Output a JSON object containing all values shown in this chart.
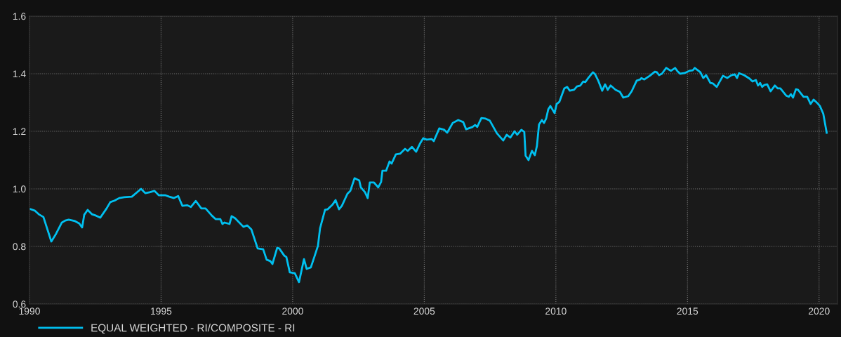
{
  "chart_data": {
    "type": "line",
    "x": [
      1990.03,
      1990.21,
      1990.35,
      1990.53,
      1990.83,
      1991.01,
      1991.23,
      1991.36,
      1991.49,
      1991.73,
      1991.89,
      1992.0,
      1992.08,
      1992.21,
      1992.37,
      1992.53,
      1992.69,
      1992.93,
      1993.07,
      1993.23,
      1993.41,
      1993.6,
      1993.89,
      1994.24,
      1994.4,
      1994.56,
      1994.75,
      1994.91,
      1995.15,
      1995.31,
      1995.49,
      1995.65,
      1995.81,
      1996.0,
      1996.13,
      1996.32,
      1996.53,
      1996.69,
      1996.93,
      1997.07,
      1997.25,
      1997.33,
      1997.41,
      1997.6,
      1997.68,
      1997.81,
      1998.13,
      1998.27,
      1998.43,
      1998.67,
      1998.88,
      1999.01,
      1999.15,
      1999.23,
      1999.41,
      1999.49,
      1999.68,
      1999.76,
      1999.89,
      2000.08,
      2000.24,
      2000.43,
      2000.53,
      2000.69,
      2000.85,
      2000.96,
      2001.04,
      2001.23,
      2001.33,
      2001.52,
      2001.63,
      2001.76,
      2001.87,
      2002.08,
      2002.19,
      2002.35,
      2002.53,
      2002.59,
      2002.75,
      2002.85,
      2002.93,
      2003.09,
      2003.25,
      2003.36,
      2003.41,
      2003.55,
      2003.68,
      2003.76,
      2003.92,
      2004.08,
      2004.27,
      2004.37,
      2004.53,
      2004.69,
      2004.83,
      2004.96,
      2005.09,
      2005.28,
      2005.36,
      2005.57,
      2005.76,
      2005.87,
      2006.08,
      2006.29,
      2006.48,
      2006.59,
      2006.83,
      2006.93,
      2007.01,
      2007.17,
      2007.33,
      2007.49,
      2007.76,
      2008.0,
      2008.13,
      2008.27,
      2008.43,
      2008.53,
      2008.69,
      2008.8,
      2008.85,
      2008.96,
      2009.09,
      2009.2,
      2009.28,
      2009.36,
      2009.47,
      2009.55,
      2009.63,
      2009.71,
      2009.79,
      2009.95,
      2010.03,
      2010.13,
      2010.32,
      2010.43,
      2010.53,
      2010.69,
      2010.8,
      2010.93,
      2011.04,
      2011.12,
      2011.23,
      2011.41,
      2011.49,
      2011.6,
      2011.76,
      2011.87,
      2011.97,
      2012.08,
      2012.27,
      2012.43,
      2012.56,
      2012.75,
      2012.88,
      2013.07,
      2013.2,
      2013.25,
      2013.36,
      2013.57,
      2013.76,
      2013.84,
      2013.92,
      2014.03,
      2014.19,
      2014.37,
      2014.53,
      2014.61,
      2014.72,
      2014.88,
      2015.07,
      2015.2,
      2015.28,
      2015.49,
      2015.6,
      2015.71,
      2015.87,
      2015.97,
      2016.11,
      2016.35,
      2016.51,
      2016.67,
      2016.8,
      2016.88,
      2016.96,
      2017.15,
      2017.36,
      2017.47,
      2017.6,
      2017.68,
      2017.76,
      2017.84,
      2017.92,
      2018.03,
      2018.16,
      2018.32,
      2018.43,
      2018.53,
      2018.75,
      2018.85,
      2018.93,
      2019.01,
      2019.12,
      2019.2,
      2019.41,
      2019.55,
      2019.68,
      2019.79,
      2019.89,
      2020.03,
      2020.16,
      2020.29
    ],
    "series": [
      {
        "name": "EQUAL WEIGHTED - RI/COMPOSITE - RI",
        "color": "#00c0f0",
        "values": [
          0.93,
          0.924,
          0.912,
          0.902,
          0.817,
          0.844,
          0.883,
          0.89,
          0.893,
          0.888,
          0.88,
          0.866,
          0.91,
          0.927,
          0.912,
          0.907,
          0.9,
          0.932,
          0.954,
          0.959,
          0.968,
          0.971,
          0.973,
          1.0,
          0.985,
          0.988,
          0.993,
          0.978,
          0.978,
          0.973,
          0.968,
          0.975,
          0.941,
          0.943,
          0.937,
          0.958,
          0.932,
          0.932,
          0.907,
          0.895,
          0.895,
          0.878,
          0.883,
          0.878,
          0.905,
          0.898,
          0.868,
          0.873,
          0.859,
          0.793,
          0.79,
          0.754,
          0.749,
          0.739,
          0.795,
          0.793,
          0.768,
          0.763,
          0.71,
          0.707,
          0.676,
          0.756,
          0.722,
          0.727,
          0.771,
          0.802,
          0.863,
          0.927,
          0.929,
          0.946,
          0.961,
          0.929,
          0.941,
          0.983,
          0.993,
          1.037,
          1.029,
          1.005,
          0.988,
          0.968,
          1.022,
          1.022,
          1.005,
          1.024,
          1.063,
          1.063,
          1.095,
          1.088,
          1.12,
          1.122,
          1.139,
          1.132,
          1.146,
          1.129,
          1.156,
          1.176,
          1.171,
          1.173,
          1.166,
          1.21,
          1.205,
          1.195,
          1.229,
          1.239,
          1.232,
          1.207,
          1.215,
          1.222,
          1.215,
          1.246,
          1.244,
          1.237,
          1.193,
          1.168,
          1.188,
          1.178,
          1.2,
          1.188,
          1.205,
          1.198,
          1.115,
          1.1,
          1.132,
          1.117,
          1.149,
          1.224,
          1.239,
          1.229,
          1.244,
          1.276,
          1.288,
          1.263,
          1.295,
          1.302,
          1.349,
          1.354,
          1.341,
          1.344,
          1.356,
          1.359,
          1.373,
          1.371,
          1.385,
          1.405,
          1.398,
          1.378,
          1.341,
          1.363,
          1.344,
          1.359,
          1.344,
          1.337,
          1.317,
          1.322,
          1.339,
          1.376,
          1.38,
          1.385,
          1.38,
          1.393,
          1.407,
          1.405,
          1.395,
          1.4,
          1.42,
          1.41,
          1.42,
          1.41,
          1.4,
          1.402,
          1.41,
          1.412,
          1.42,
          1.405,
          1.385,
          1.395,
          1.368,
          1.366,
          1.354,
          1.393,
          1.385,
          1.395,
          1.398,
          1.385,
          1.402,
          1.395,
          1.383,
          1.373,
          1.378,
          1.359,
          1.368,
          1.354,
          1.361,
          1.363,
          1.339,
          1.359,
          1.349,
          1.349,
          1.324,
          1.32,
          1.329,
          1.317,
          1.346,
          1.344,
          1.32,
          1.32,
          1.295,
          1.31,
          1.302,
          1.288,
          1.261,
          1.195
        ]
      }
    ],
    "xlim": [
      1990,
      2020.7
    ],
    "xticks": [
      1990,
      1995,
      2000,
      2005,
      2010,
      2015,
      2020
    ],
    "ylim": [
      0.6,
      1.6
    ],
    "yticks": [
      0.6,
      0.8,
      {
        "value": 1,
        "label": "1.0"
      },
      1.2,
      1.4,
      1.6
    ],
    "grid": true,
    "legend": "bottom left",
    "marker": "none",
    "line_style": "solid"
  }
}
